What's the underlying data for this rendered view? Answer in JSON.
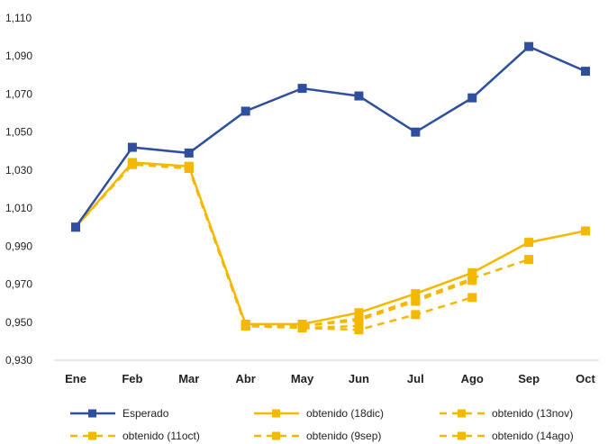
{
  "chart_data": {
    "type": "line",
    "categories": [
      "Ene",
      "Feb",
      "Mar",
      "Abr",
      "May",
      "Jun",
      "Jul",
      "Ago",
      "Sep",
      "Oct"
    ],
    "ylim": [
      0.93,
      1.11
    ],
    "yticks": [
      "0,930",
      "0,950",
      "0,970",
      "0,990",
      "1,010",
      "1,030",
      "1,050",
      "1,070",
      "1,090",
      "1,110"
    ],
    "grid": false,
    "legend_position": "bottom",
    "series": [
      {
        "name": "Esperado",
        "color": "#2E4F9E",
        "style": "solid",
        "values": [
          1.0,
          1.042,
          1.039,
          1.061,
          1.073,
          1.069,
          1.05,
          1.068,
          1.095,
          1.082
        ]
      },
      {
        "name": "obtenido (18dic)",
        "color": "#F5B800",
        "style": "solid",
        "values": [
          1.0,
          1.034,
          1.032,
          0.949,
          0.949,
          0.955,
          0.965,
          0.976,
          0.992,
          0.998
        ]
      },
      {
        "name": "obtenido (13nov)",
        "color": "#F5B800",
        "style": "dashed",
        "values": [
          1.0,
          1.033,
          1.031,
          0.948,
          0.948,
          0.952,
          0.962,
          0.973,
          0.983,
          null
        ]
      },
      {
        "name": "obtenido (11oct)",
        "color": "#F5B800",
        "style": "dashed",
        "values": [
          1.0,
          1.033,
          1.031,
          0.948,
          0.948,
          0.951,
          0.961,
          0.972,
          null,
          null
        ]
      },
      {
        "name": "obtenido (9sep)",
        "color": "#F5B800",
        "style": "dashed",
        "values": [
          1.0,
          1.033,
          1.031,
          0.948,
          0.947,
          0.946,
          0.954,
          0.963,
          null,
          null
        ]
      },
      {
        "name": "obtenido (14ago)",
        "color": "#F5B800",
        "style": "dashed",
        "values": [
          1.0,
          1.033,
          1.031,
          0.948,
          0.947,
          0.948,
          null,
          null,
          null,
          null
        ]
      }
    ]
  }
}
